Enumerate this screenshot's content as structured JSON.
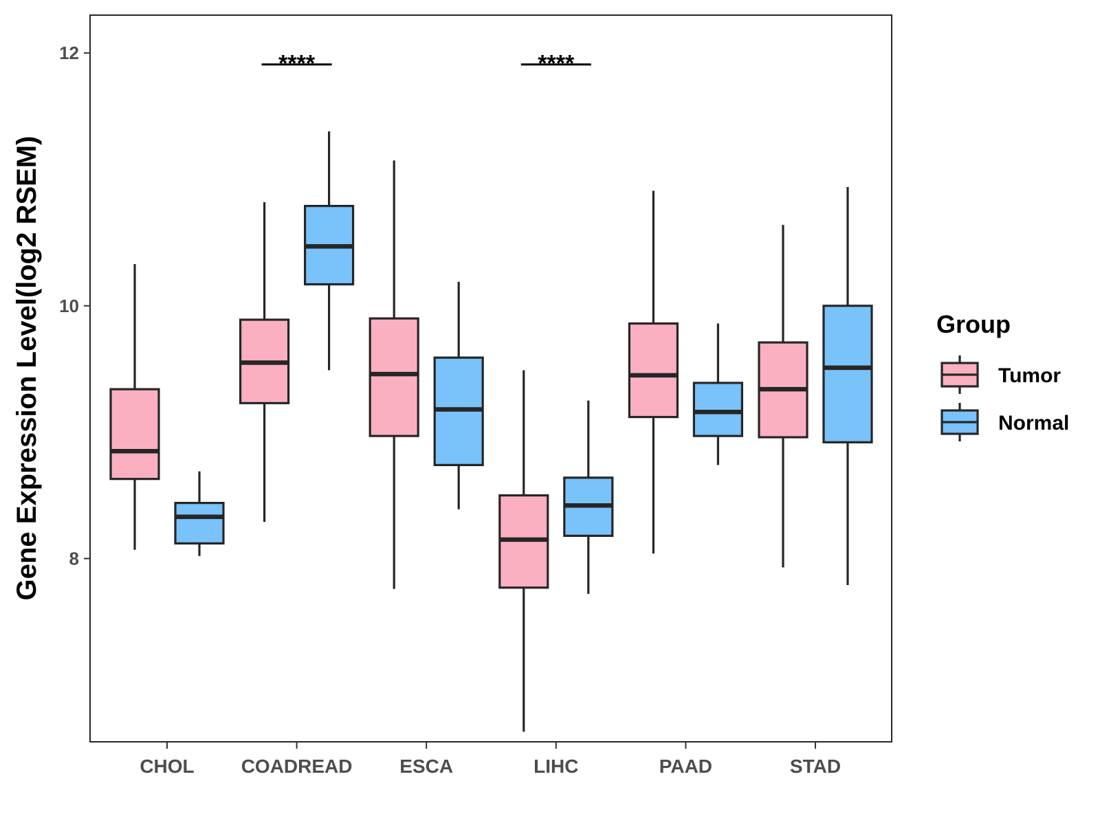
{
  "chart_data": {
    "type": "boxplot",
    "title": "",
    "xlabel": "",
    "ylabel": "Gene Expression Level(log2 RSEM)",
    "ylim": [
      6.55,
      12.3
    ],
    "yticks": [
      8,
      10,
      12
    ],
    "grid": false,
    "legend": {
      "title": "Group",
      "placement": "right",
      "entries": [
        "Tumor",
        "Normal"
      ]
    },
    "colors": {
      "Tumor": "#fbb0c2",
      "Normal": "#79c2fa",
      "outline": "#262626"
    },
    "categories": [
      "CHOL",
      "COADREAD",
      "ESCA",
      "LIHC",
      "PAAD",
      "STAD"
    ],
    "series": [
      {
        "name": "Tumor",
        "boxes": [
          {
            "min": 8.07,
            "q1": 8.63,
            "median": 8.85,
            "q3": 9.34,
            "max": 10.33
          },
          {
            "min": 8.29,
            "q1": 9.23,
            "median": 9.55,
            "q3": 9.89,
            "max": 10.82
          },
          {
            "min": 7.76,
            "q1": 8.97,
            "median": 9.46,
            "q3": 9.9,
            "max": 11.15
          },
          {
            "min": 6.63,
            "q1": 7.77,
            "median": 8.15,
            "q3": 8.5,
            "max": 9.49
          },
          {
            "min": 8.04,
            "q1": 9.12,
            "median": 9.45,
            "q3": 9.86,
            "max": 10.91
          },
          {
            "min": 7.93,
            "q1": 8.96,
            "median": 9.34,
            "q3": 9.71,
            "max": 10.64
          }
        ]
      },
      {
        "name": "Normal",
        "boxes": [
          {
            "min": 8.02,
            "q1": 8.12,
            "median": 8.33,
            "q3": 8.44,
            "max": 8.69
          },
          {
            "min": 9.49,
            "q1": 10.17,
            "median": 10.47,
            "q3": 10.79,
            "max": 11.38
          },
          {
            "min": 8.39,
            "q1": 8.74,
            "median": 9.18,
            "q3": 9.59,
            "max": 10.19
          },
          {
            "min": 7.72,
            "q1": 8.18,
            "median": 8.42,
            "q3": 8.64,
            "max": 9.25
          },
          {
            "min": 8.74,
            "q1": 8.97,
            "median": 9.16,
            "q3": 9.39,
            "max": 9.86
          },
          {
            "min": 7.79,
            "q1": 8.92,
            "median": 9.51,
            "q3": 10.0,
            "max": 10.94
          }
        ]
      }
    ],
    "annotations": [
      {
        "category": "COADREAD",
        "text": "****",
        "y": 11.91
      },
      {
        "category": "LIHC",
        "text": "****",
        "y": 11.91
      }
    ]
  }
}
